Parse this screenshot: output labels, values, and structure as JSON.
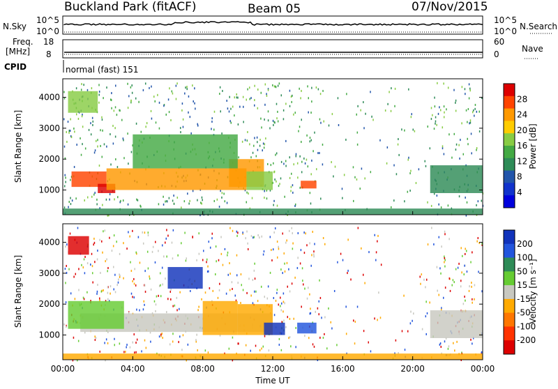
{
  "header": {
    "station": "Buckland Park (fitACF)",
    "beam": "Beam 05",
    "date": "07/Nov/2015"
  },
  "noise_panel": {
    "left_label": "N.Sky",
    "right_label": "N.Search",
    "left_ticks": [
      "10^5",
      "10^0"
    ],
    "right_ticks": [
      "10^5",
      "10^0"
    ]
  },
  "freq_panel": {
    "left_label_line1": "Freq.",
    "left_label_line2": "[MHz]",
    "right_label": "Nave",
    "left_ticks": [
      "18",
      "8"
    ],
    "right_ticks": [
      "60",
      "0"
    ]
  },
  "cpid_panel": {
    "label": "CPID",
    "value": "normal (fast) 151"
  },
  "power_panel": {
    "ylabel": "Slant Range [km]",
    "yticks": [
      "4000",
      "3000",
      "2000",
      "1000"
    ],
    "colorbar_label": "Power [dB]",
    "colorbar_ticks": [
      "28",
      "24",
      "20",
      "16",
      "12",
      "8",
      "4"
    ],
    "colorbar_colors": [
      "#dd0000",
      "#ff4400",
      "#ff9900",
      "#ffcc00",
      "#88cc44",
      "#44aa44",
      "#2e8b57",
      "#2255aa",
      "#1133cc",
      "#0000dd"
    ]
  },
  "velocity_panel": {
    "ylabel": "Slant Range [km]",
    "yticks": [
      "4000",
      "3000",
      "2000",
      "1000"
    ],
    "colorbar_label": "Velocity [m s⁻¹]",
    "colorbar_ticks": [
      "200",
      "100",
      "50",
      "15",
      "-15",
      "-50",
      "-100",
      "-200"
    ],
    "colorbar_colors": [
      "#1133bb",
      "#2255dd",
      "#2e8b57",
      "#66cc33",
      "#c8c8c0",
      "#ffaa00",
      "#ff7700",
      "#ff3300",
      "#dd0000"
    ]
  },
  "xaxis": {
    "label": "Time UT",
    "ticks": [
      "00:00",
      "04:00",
      "08:00",
      "12:00",
      "16:00",
      "20:00",
      "00:00"
    ]
  },
  "chart_data": {
    "type": "heatmap",
    "title": "Buckland Park (fitACF)",
    "xlabel": "Time UT",
    "ylabel": "Slant Range [km]",
    "xlim": [
      0,
      24
    ],
    "ylim": [
      200,
      4600
    ],
    "series": [
      {
        "name": "Power [dB]",
        "range": [
          0,
          30
        ],
        "regions": [
          {
            "t": [
              0.5,
              2.5
            ],
            "r": [
              1100,
              1600
            ],
            "value": 26
          },
          {
            "t": [
              2.0,
              3.0
            ],
            "r": [
              900,
              1200
            ],
            "value": 28
          },
          {
            "t": [
              2.5,
              10.5
            ],
            "r": [
              1000,
              1700
            ],
            "value": 24
          },
          {
            "t": [
              9.5,
              11.5
            ],
            "r": [
              1100,
              2000
            ],
            "value": 22
          },
          {
            "t": [
              10.5,
              12.0
            ],
            "r": [
              1000,
              1600
            ],
            "value": 18
          },
          {
            "t": [
              13.6,
              14.5
            ],
            "r": [
              1050,
              1300
            ],
            "value": 26
          },
          {
            "t": [
              4.0,
              10.0
            ],
            "r": [
              1700,
              2800
            ],
            "value": 14
          },
          {
            "t": [
              0.3,
              2.0
            ],
            "r": [
              3500,
              4200
            ],
            "value": 18
          },
          {
            "t": [
              21.0,
              24.0
            ],
            "r": [
              900,
              1800
            ],
            "value": 10
          },
          {
            "t": [
              0.0,
              24.0
            ],
            "r": [
              200,
              400
            ],
            "value": 12
          }
        ]
      },
      {
        "name": "Velocity [m s⁻¹]",
        "range": [
          -200,
          200
        ],
        "regions": [
          {
            "t": [
              1.0,
              12.0
            ],
            "r": [
              1100,
              1700
            ],
            "value": 0
          },
          {
            "t": [
              0.3,
              3.5
            ],
            "r": [
              1200,
              2100
            ],
            "value": 30
          },
          {
            "t": [
              8.0,
              10.0
            ],
            "r": [
              1000,
              2100
            ],
            "value": -40
          },
          {
            "t": [
              10.0,
              12.0
            ],
            "r": [
              1000,
              2000
            ],
            "value": -30
          },
          {
            "t": [
              11.5,
              12.7
            ],
            "r": [
              1000,
              1400
            ],
            "value": 180
          },
          {
            "t": [
              13.4,
              14.5
            ],
            "r": [
              1050,
              1400
            ],
            "value": 150
          },
          {
            "t": [
              6.0,
              8.0
            ],
            "r": [
              2500,
              3200
            ],
            "value": 180
          },
          {
            "t": [
              0.3,
              1.5
            ],
            "r": [
              3600,
              4200
            ],
            "value": -180
          },
          {
            "t": [
              21.0,
              24.0
            ],
            "r": [
              900,
              1800
            ],
            "value": 0
          },
          {
            "t": [
              0.0,
              24.0
            ],
            "r": [
              200,
              400
            ],
            "value": -30
          }
        ]
      }
    ]
  }
}
